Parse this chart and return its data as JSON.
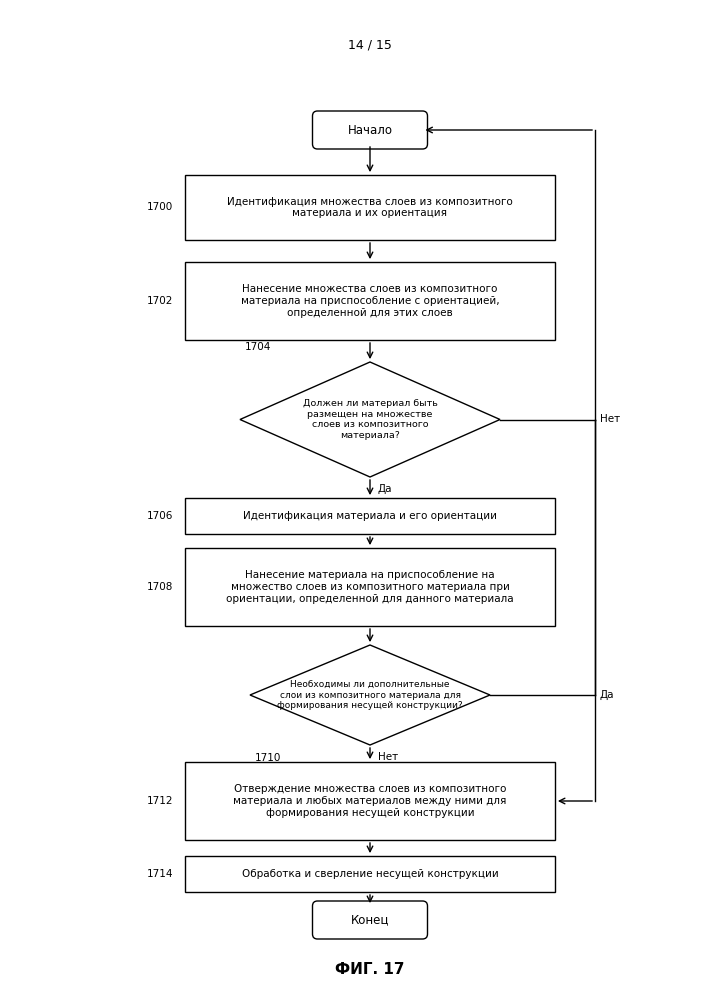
{
  "page_label": "14 / 15",
  "fig_label": "ФИГ. 17",
  "background_color": "#ffffff",
  "line_color": "#000000",
  "text_color": "#000000",
  "start_text": "Начало",
  "end_text": "Конец",
  "node_1700_text": "Идентификация множества слоев из композитного\nматериала и их ориентация",
  "node_1702_text": "Нанесение множества слоев из композитного\nматериала на приспособление с ориентацией,\nопределенной для этих слоев",
  "node_1704_text": "Должен ли материал быть\nразмещен на множестве\nслоев из композитного\nматериала?",
  "node_1706_text": "Идентификация материала и его ориентации",
  "node_1708_text": "Нанесение материала на приспособление на\nмножество слоев из композитного материала при\nориентации, определенной для данного материала",
  "node_1710_text": "Необходимы ли дополнительные\nслои из композитного материала для\nформирования несущей конструкции?",
  "node_1712_text": "Отверждение множества слоев из композитного\nматериала и любых материалов между ними для\nформирования несущей конструкции",
  "node_1714_text": "Обработка и сверление несущей конструкции",
  "yes_label": "Да",
  "no_label": "Нет"
}
